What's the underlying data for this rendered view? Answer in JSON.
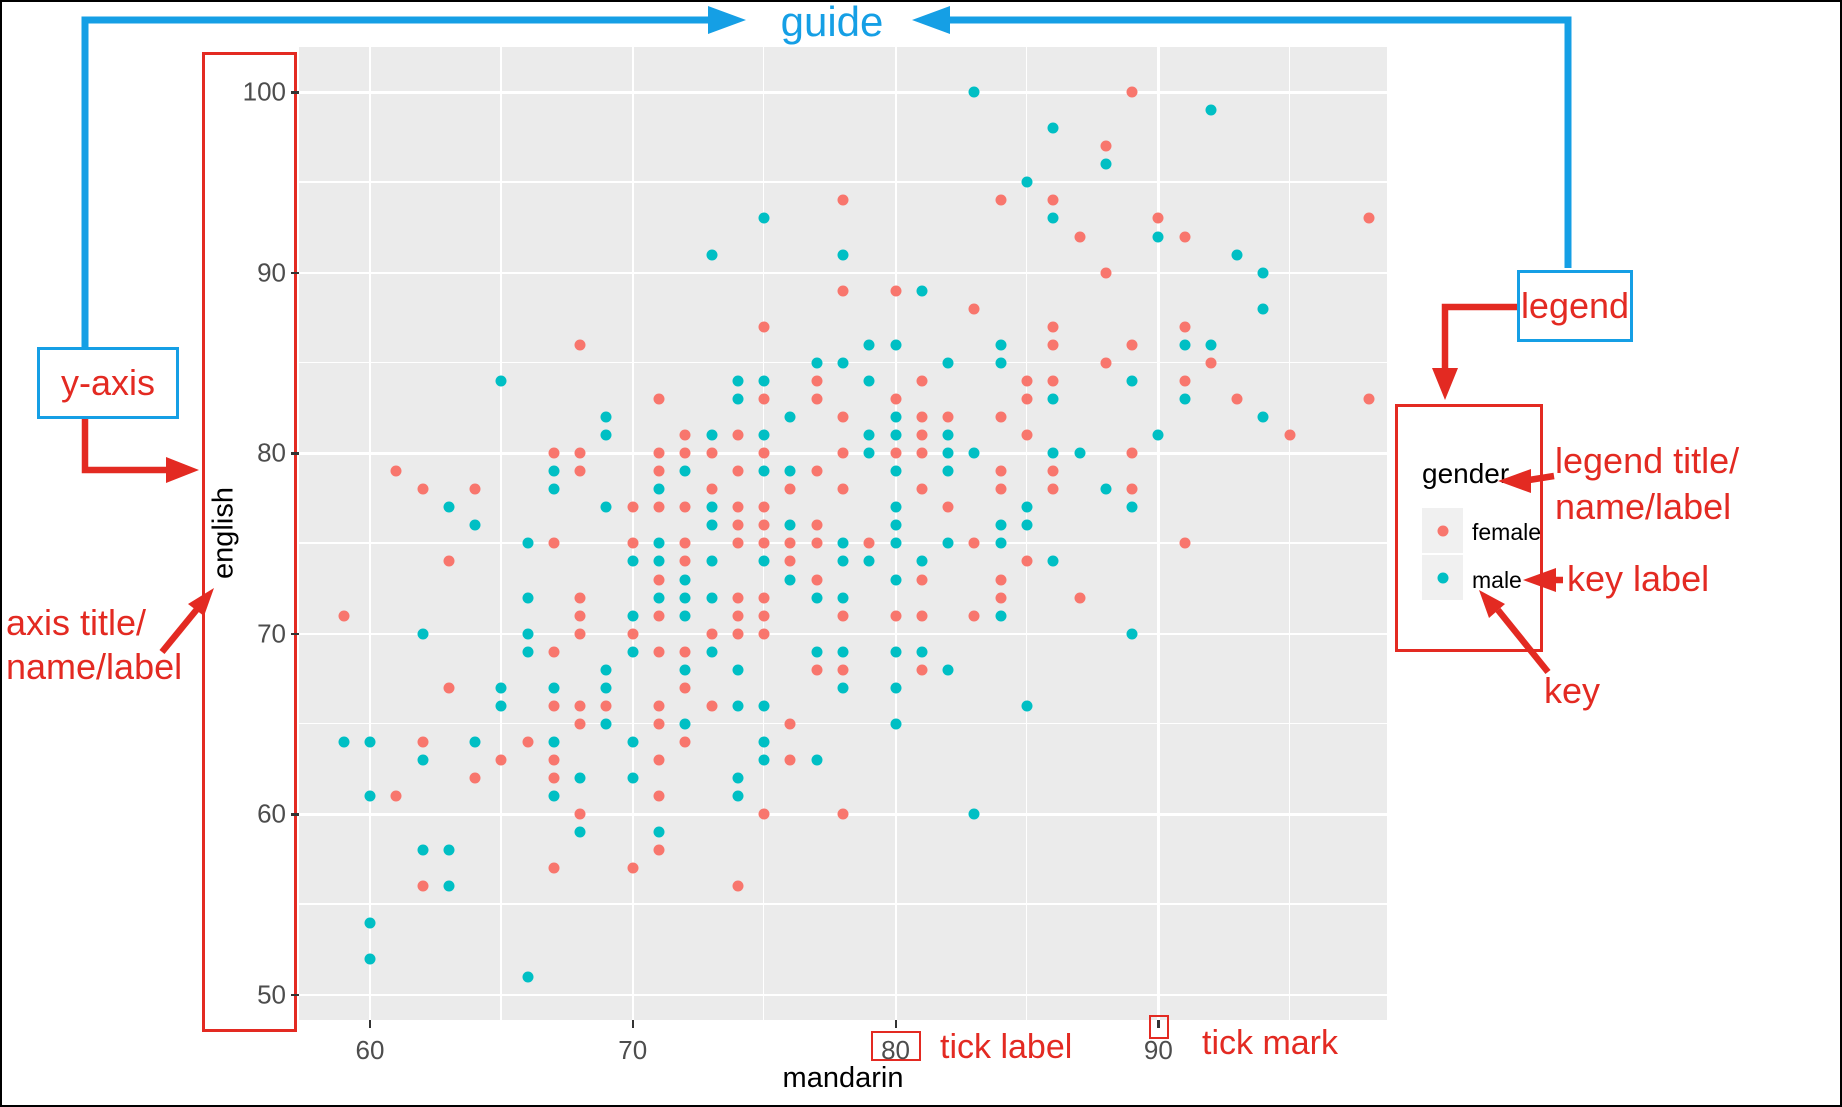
{
  "colors": {
    "annotation_red": "#E32A22",
    "annotation_blue": "#159FE5",
    "panel_background": "#EBEBEB",
    "gridline": "#FFFFFF",
    "tick_label": "#4D4D4D",
    "female": "#F8766D",
    "male": "#00BFC4"
  },
  "annotations": {
    "guide": "guide",
    "y_axis": "y-axis",
    "axis_title_line1": "axis title/",
    "axis_title_line2": "name/label",
    "legend": "legend",
    "legend_title_line1": "legend title/",
    "legend_title_line2": "name/label",
    "key_label": "key label",
    "key": "key",
    "tick_label": "tick label",
    "tick_mark": "tick mark"
  },
  "chart_data": {
    "type": "scatter",
    "xlabel": "mandarin",
    "ylabel": "english",
    "legend_title": "gender",
    "xlim": [
      57.3,
      98.7
    ],
    "ylim": [
      48.6,
      102.5
    ],
    "x_ticks": [
      60,
      70,
      80,
      90
    ],
    "x_minor": [
      65,
      75,
      85,
      95
    ],
    "y_ticks": [
      50,
      60,
      70,
      80,
      90,
      100
    ],
    "y_minor": [
      55,
      65,
      75,
      85,
      95
    ],
    "grid": true,
    "legend_position": "right",
    "series": [
      {
        "name": "female",
        "color": "#F8766D",
        "points": [
          [
            62,
            56
          ],
          [
            67,
            57
          ],
          [
            70,
            57
          ],
          [
            71,
            58
          ],
          [
            68,
            86
          ],
          [
            71,
            83
          ],
          [
            67,
            80
          ],
          [
            68,
            80
          ],
          [
            71,
            80
          ],
          [
            61,
            79
          ],
          [
            68,
            79
          ],
          [
            71,
            79
          ],
          [
            62,
            78
          ],
          [
            64,
            78
          ],
          [
            70,
            77
          ],
          [
            71,
            77
          ],
          [
            67,
            75
          ],
          [
            70,
            75
          ],
          [
            63,
            74
          ],
          [
            71,
            73
          ],
          [
            68,
            72
          ],
          [
            59,
            71
          ],
          [
            68,
            71
          ],
          [
            71,
            71
          ],
          [
            68,
            70
          ],
          [
            70,
            70
          ],
          [
            67,
            69
          ],
          [
            71,
            69
          ],
          [
            63,
            67
          ],
          [
            67,
            66
          ],
          [
            68,
            66
          ],
          [
            69,
            66
          ],
          [
            71,
            66
          ],
          [
            68,
            65
          ],
          [
            71,
            65
          ],
          [
            62,
            64
          ],
          [
            66,
            64
          ],
          [
            65,
            63
          ],
          [
            67,
            63
          ],
          [
            71,
            63
          ],
          [
            64,
            62
          ],
          [
            67,
            62
          ],
          [
            61,
            61
          ],
          [
            71,
            61
          ],
          [
            68,
            60
          ],
          [
            78,
            94
          ],
          [
            84,
            94
          ],
          [
            86,
            94
          ],
          [
            78,
            89
          ],
          [
            80,
            89
          ],
          [
            83,
            88
          ],
          [
            75,
            87
          ],
          [
            86,
            87
          ],
          [
            86,
            86
          ],
          [
            77,
            84
          ],
          [
            81,
            84
          ],
          [
            85,
            84
          ],
          [
            86,
            84
          ],
          [
            75,
            83
          ],
          [
            77,
            83
          ],
          [
            80,
            83
          ],
          [
            85,
            83
          ],
          [
            78,
            82
          ],
          [
            81,
            82
          ],
          [
            82,
            82
          ],
          [
            84,
            82
          ],
          [
            72,
            81
          ],
          [
            74,
            81
          ],
          [
            81,
            81
          ],
          [
            85,
            81
          ],
          [
            72,
            80
          ],
          [
            73,
            80
          ],
          [
            75,
            80
          ],
          [
            78,
            80
          ],
          [
            80,
            80
          ],
          [
            81,
            80
          ],
          [
            74,
            79
          ],
          [
            77,
            79
          ],
          [
            84,
            79
          ],
          [
            86,
            79
          ],
          [
            73,
            78
          ],
          [
            76,
            78
          ],
          [
            78,
            78
          ],
          [
            81,
            78
          ],
          [
            84,
            78
          ],
          [
            86,
            78
          ],
          [
            72,
            77
          ],
          [
            74,
            77
          ],
          [
            75,
            77
          ],
          [
            82,
            77
          ],
          [
            74,
            76
          ],
          [
            75,
            76
          ],
          [
            77,
            76
          ],
          [
            72,
            75
          ],
          [
            74,
            75
          ],
          [
            75,
            75
          ],
          [
            76,
            75
          ],
          [
            77,
            75
          ],
          [
            79,
            75
          ],
          [
            83,
            75
          ],
          [
            72,
            74
          ],
          [
            76,
            74
          ],
          [
            85,
            74
          ],
          [
            77,
            73
          ],
          [
            81,
            73
          ],
          [
            84,
            73
          ],
          [
            74,
            72
          ],
          [
            75,
            72
          ],
          [
            84,
            72
          ],
          [
            74,
            71
          ],
          [
            75,
            71
          ],
          [
            78,
            71
          ],
          [
            80,
            71
          ],
          [
            81,
            71
          ],
          [
            83,
            71
          ],
          [
            73,
            70
          ],
          [
            74,
            70
          ],
          [
            75,
            70
          ],
          [
            72,
            69
          ],
          [
            77,
            68
          ],
          [
            78,
            68
          ],
          [
            81,
            68
          ],
          [
            72,
            67
          ],
          [
            73,
            66
          ],
          [
            76,
            65
          ],
          [
            72,
            64
          ],
          [
            76,
            63
          ],
          [
            75,
            60
          ],
          [
            78,
            60
          ],
          [
            74,
            56
          ],
          [
            89,
            100
          ],
          [
            88,
            97
          ],
          [
            90,
            93
          ],
          [
            98,
            93
          ],
          [
            87,
            92
          ],
          [
            91,
            92
          ],
          [
            88,
            90
          ],
          [
            91,
            87
          ],
          [
            89,
            86
          ],
          [
            88,
            85
          ],
          [
            92,
            85
          ],
          [
            91,
            84
          ],
          [
            93,
            83
          ],
          [
            98,
            83
          ],
          [
            95,
            81
          ],
          [
            89,
            80
          ],
          [
            89,
            78
          ],
          [
            91,
            75
          ],
          [
            87,
            72
          ]
        ]
      },
      {
        "name": "male",
        "color": "#00BFC4",
        "points": [
          [
            62,
            58
          ],
          [
            63,
            58
          ],
          [
            63,
            56
          ],
          [
            60,
            54
          ],
          [
            60,
            52
          ],
          [
            66,
            51
          ],
          [
            68,
            59
          ],
          [
            71,
            59
          ],
          [
            65,
            84
          ],
          [
            69,
            82
          ],
          [
            69,
            81
          ],
          [
            67,
            79
          ],
          [
            67,
            78
          ],
          [
            71,
            78
          ],
          [
            63,
            77
          ],
          [
            69,
            77
          ],
          [
            64,
            76
          ],
          [
            66,
            75
          ],
          [
            71,
            75
          ],
          [
            70,
            74
          ],
          [
            71,
            74
          ],
          [
            66,
            72
          ],
          [
            71,
            72
          ],
          [
            70,
            71
          ],
          [
            62,
            70
          ],
          [
            66,
            70
          ],
          [
            66,
            69
          ],
          [
            70,
            69
          ],
          [
            69,
            68
          ],
          [
            65,
            67
          ],
          [
            67,
            67
          ],
          [
            69,
            67
          ],
          [
            65,
            66
          ],
          [
            69,
            65
          ],
          [
            59,
            64
          ],
          [
            60,
            64
          ],
          [
            64,
            64
          ],
          [
            67,
            64
          ],
          [
            70,
            64
          ],
          [
            62,
            63
          ],
          [
            68,
            62
          ],
          [
            70,
            62
          ],
          [
            60,
            61
          ],
          [
            67,
            61
          ],
          [
            83,
            100
          ],
          [
            86,
            98
          ],
          [
            85,
            95
          ],
          [
            75,
            93
          ],
          [
            86,
            93
          ],
          [
            73,
            91
          ],
          [
            78,
            91
          ],
          [
            81,
            89
          ],
          [
            79,
            86
          ],
          [
            80,
            86
          ],
          [
            84,
            86
          ],
          [
            77,
            85
          ],
          [
            78,
            85
          ],
          [
            82,
            85
          ],
          [
            84,
            85
          ],
          [
            74,
            84
          ],
          [
            75,
            84
          ],
          [
            79,
            84
          ],
          [
            74,
            83
          ],
          [
            86,
            83
          ],
          [
            76,
            82
          ],
          [
            80,
            82
          ],
          [
            73,
            81
          ],
          [
            75,
            81
          ],
          [
            79,
            81
          ],
          [
            80,
            81
          ],
          [
            82,
            81
          ],
          [
            79,
            80
          ],
          [
            82,
            80
          ],
          [
            83,
            80
          ],
          [
            86,
            80
          ],
          [
            72,
            79
          ],
          [
            75,
            79
          ],
          [
            76,
            79
          ],
          [
            80,
            79
          ],
          [
            82,
            79
          ],
          [
            73,
            77
          ],
          [
            80,
            77
          ],
          [
            85,
            77
          ],
          [
            73,
            76
          ],
          [
            76,
            76
          ],
          [
            80,
            76
          ],
          [
            84,
            76
          ],
          [
            85,
            76
          ],
          [
            78,
            75
          ],
          [
            80,
            75
          ],
          [
            82,
            75
          ],
          [
            84,
            75
          ],
          [
            73,
            74
          ],
          [
            75,
            74
          ],
          [
            78,
            74
          ],
          [
            79,
            74
          ],
          [
            81,
            74
          ],
          [
            86,
            74
          ],
          [
            72,
            73
          ],
          [
            76,
            73
          ],
          [
            80,
            73
          ],
          [
            72,
            72
          ],
          [
            73,
            72
          ],
          [
            77,
            72
          ],
          [
            78,
            72
          ],
          [
            72,
            71
          ],
          [
            84,
            71
          ],
          [
            73,
            69
          ],
          [
            77,
            69
          ],
          [
            78,
            69
          ],
          [
            80,
            69
          ],
          [
            81,
            69
          ],
          [
            72,
            68
          ],
          [
            74,
            68
          ],
          [
            82,
            68
          ],
          [
            78,
            67
          ],
          [
            80,
            67
          ],
          [
            74,
            66
          ],
          [
            75,
            66
          ],
          [
            85,
            66
          ],
          [
            72,
            65
          ],
          [
            80,
            65
          ],
          [
            75,
            64
          ],
          [
            75,
            63
          ],
          [
            77,
            63
          ],
          [
            74,
            62
          ],
          [
            74,
            61
          ],
          [
            83,
            60
          ],
          [
            92,
            99
          ],
          [
            88,
            96
          ],
          [
            90,
            92
          ],
          [
            93,
            91
          ],
          [
            94,
            90
          ],
          [
            94,
            88
          ],
          [
            91,
            86
          ],
          [
            92,
            86
          ],
          [
            89,
            84
          ],
          [
            91,
            83
          ],
          [
            94,
            82
          ],
          [
            90,
            81
          ],
          [
            87,
            80
          ],
          [
            88,
            78
          ],
          [
            89,
            77
          ],
          [
            89,
            70
          ]
        ]
      }
    ]
  }
}
